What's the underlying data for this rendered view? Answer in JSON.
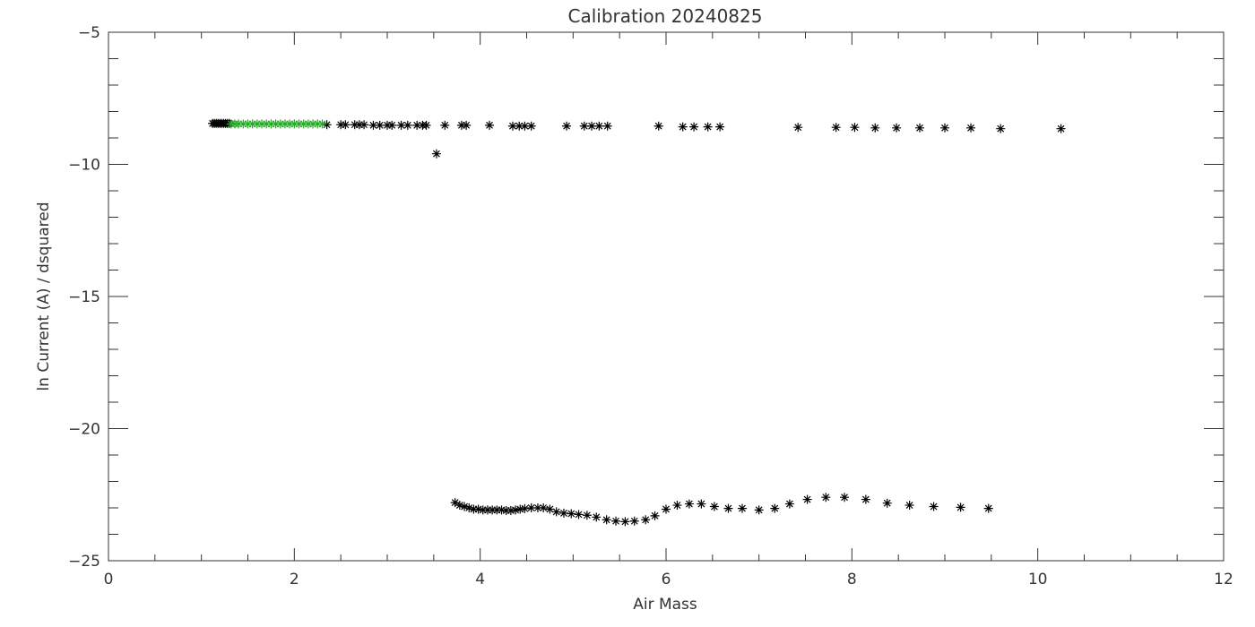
{
  "chart_data": {
    "type": "scatter",
    "title": "Calibration 20240825",
    "xlabel": "Air Mass",
    "ylabel": "ln Current (A) / dsquared",
    "xlim": [
      0,
      12
    ],
    "ylim": [
      -25,
      -5
    ],
    "x_ticks": [
      0,
      2,
      4,
      6,
      8,
      10,
      12
    ],
    "y_ticks": [
      -25,
      -20,
      -15,
      -10,
      -5
    ],
    "x_tick_labels": [
      "0",
      "2",
      "4",
      "6",
      "8",
      "10",
      "12"
    ],
    "y_tick_labels": [
      "−25",
      "−20",
      "−15",
      "−10",
      "−5"
    ],
    "grid": false,
    "marker": "asterisk",
    "colors": {
      "black": "#000000",
      "green": "#22aa22",
      "axis": "#333333"
    },
    "series": [
      {
        "color": "black",
        "points": [
          [
            1.12,
            -8.45
          ],
          [
            1.14,
            -8.45
          ],
          [
            1.16,
            -8.45
          ],
          [
            1.18,
            -8.45
          ],
          [
            1.2,
            -8.45
          ],
          [
            1.22,
            -8.45
          ],
          [
            1.24,
            -8.45
          ],
          [
            1.26,
            -8.45
          ],
          [
            1.28,
            -8.45
          ],
          [
            1.3,
            -8.45
          ],
          [
            2.35,
            -8.5
          ],
          [
            2.5,
            -8.5
          ],
          [
            2.55,
            -8.5
          ],
          [
            2.65,
            -8.5
          ],
          [
            2.7,
            -8.5
          ],
          [
            2.75,
            -8.5
          ],
          [
            2.85,
            -8.52
          ],
          [
            2.92,
            -8.52
          ],
          [
            3.0,
            -8.52
          ],
          [
            3.05,
            -8.52
          ],
          [
            3.15,
            -8.52
          ],
          [
            3.22,
            -8.52
          ],
          [
            3.32,
            -8.52
          ],
          [
            3.38,
            -8.52
          ],
          [
            3.42,
            -8.52
          ],
          [
            3.53,
            -9.6
          ],
          [
            3.62,
            -8.52
          ],
          [
            3.8,
            -8.52
          ],
          [
            3.85,
            -8.52
          ],
          [
            4.1,
            -8.52
          ],
          [
            4.35,
            -8.55
          ],
          [
            4.42,
            -8.55
          ],
          [
            4.48,
            -8.55
          ],
          [
            4.55,
            -8.55
          ],
          [
            4.93,
            -8.55
          ],
          [
            5.12,
            -8.55
          ],
          [
            5.2,
            -8.55
          ],
          [
            5.28,
            -8.55
          ],
          [
            5.37,
            -8.55
          ],
          [
            5.92,
            -8.55
          ],
          [
            6.18,
            -8.58
          ],
          [
            6.3,
            -8.58
          ],
          [
            6.45,
            -8.58
          ],
          [
            6.58,
            -8.58
          ],
          [
            7.42,
            -8.6
          ],
          [
            7.83,
            -8.6
          ],
          [
            8.03,
            -8.6
          ],
          [
            8.25,
            -8.62
          ],
          [
            8.48,
            -8.62
          ],
          [
            8.73,
            -8.62
          ],
          [
            9.0,
            -8.62
          ],
          [
            9.28,
            -8.62
          ],
          [
            9.6,
            -8.65
          ],
          [
            10.25,
            -8.65
          ],
          [
            3.73,
            -22.8
          ],
          [
            3.78,
            -22.9
          ],
          [
            3.83,
            -22.95
          ],
          [
            3.88,
            -23.0
          ],
          [
            3.93,
            -23.05
          ],
          [
            3.98,
            -23.05
          ],
          [
            4.03,
            -23.08
          ],
          [
            4.08,
            -23.08
          ],
          [
            4.13,
            -23.08
          ],
          [
            4.18,
            -23.08
          ],
          [
            4.23,
            -23.08
          ],
          [
            4.28,
            -23.1
          ],
          [
            4.33,
            -23.1
          ],
          [
            4.38,
            -23.08
          ],
          [
            4.43,
            -23.05
          ],
          [
            4.48,
            -23.03
          ],
          [
            4.55,
            -23.0
          ],
          [
            4.62,
            -23.0
          ],
          [
            4.68,
            -23.0
          ],
          [
            4.75,
            -23.05
          ],
          [
            4.82,
            -23.15
          ],
          [
            4.9,
            -23.2
          ],
          [
            4.98,
            -23.22
          ],
          [
            5.06,
            -23.25
          ],
          [
            5.15,
            -23.28
          ],
          [
            5.25,
            -23.35
          ],
          [
            5.36,
            -23.45
          ],
          [
            5.46,
            -23.5
          ],
          [
            5.56,
            -23.52
          ],
          [
            5.66,
            -23.5
          ],
          [
            5.78,
            -23.45
          ],
          [
            5.88,
            -23.3
          ],
          [
            6.0,
            -23.05
          ],
          [
            6.12,
            -22.9
          ],
          [
            6.25,
            -22.85
          ],
          [
            6.38,
            -22.85
          ],
          [
            6.52,
            -22.95
          ],
          [
            6.67,
            -23.02
          ],
          [
            6.82,
            -23.02
          ],
          [
            7.0,
            -23.08
          ],
          [
            7.17,
            -23.02
          ],
          [
            7.33,
            -22.85
          ],
          [
            7.52,
            -22.68
          ],
          [
            7.72,
            -22.6
          ],
          [
            7.92,
            -22.6
          ],
          [
            8.15,
            -22.68
          ],
          [
            8.38,
            -22.82
          ],
          [
            8.62,
            -22.9
          ],
          [
            8.88,
            -22.95
          ],
          [
            9.17,
            -22.98
          ],
          [
            9.47,
            -23.02
          ]
        ]
      },
      {
        "color": "green",
        "points": [
          [
            1.32,
            -8.47
          ],
          [
            1.36,
            -8.47
          ],
          [
            1.4,
            -8.47
          ],
          [
            1.45,
            -8.47
          ],
          [
            1.5,
            -8.47
          ],
          [
            1.55,
            -8.47
          ],
          [
            1.6,
            -8.47
          ],
          [
            1.65,
            -8.47
          ],
          [
            1.7,
            -8.47
          ],
          [
            1.75,
            -8.47
          ],
          [
            1.8,
            -8.47
          ],
          [
            1.85,
            -8.47
          ],
          [
            1.9,
            -8.47
          ],
          [
            1.95,
            -8.47
          ],
          [
            2.0,
            -8.47
          ],
          [
            2.05,
            -8.47
          ],
          [
            2.1,
            -8.47
          ],
          [
            2.15,
            -8.47
          ],
          [
            2.2,
            -8.47
          ],
          [
            2.25,
            -8.47
          ],
          [
            2.3,
            -8.47
          ]
        ]
      }
    ]
  }
}
